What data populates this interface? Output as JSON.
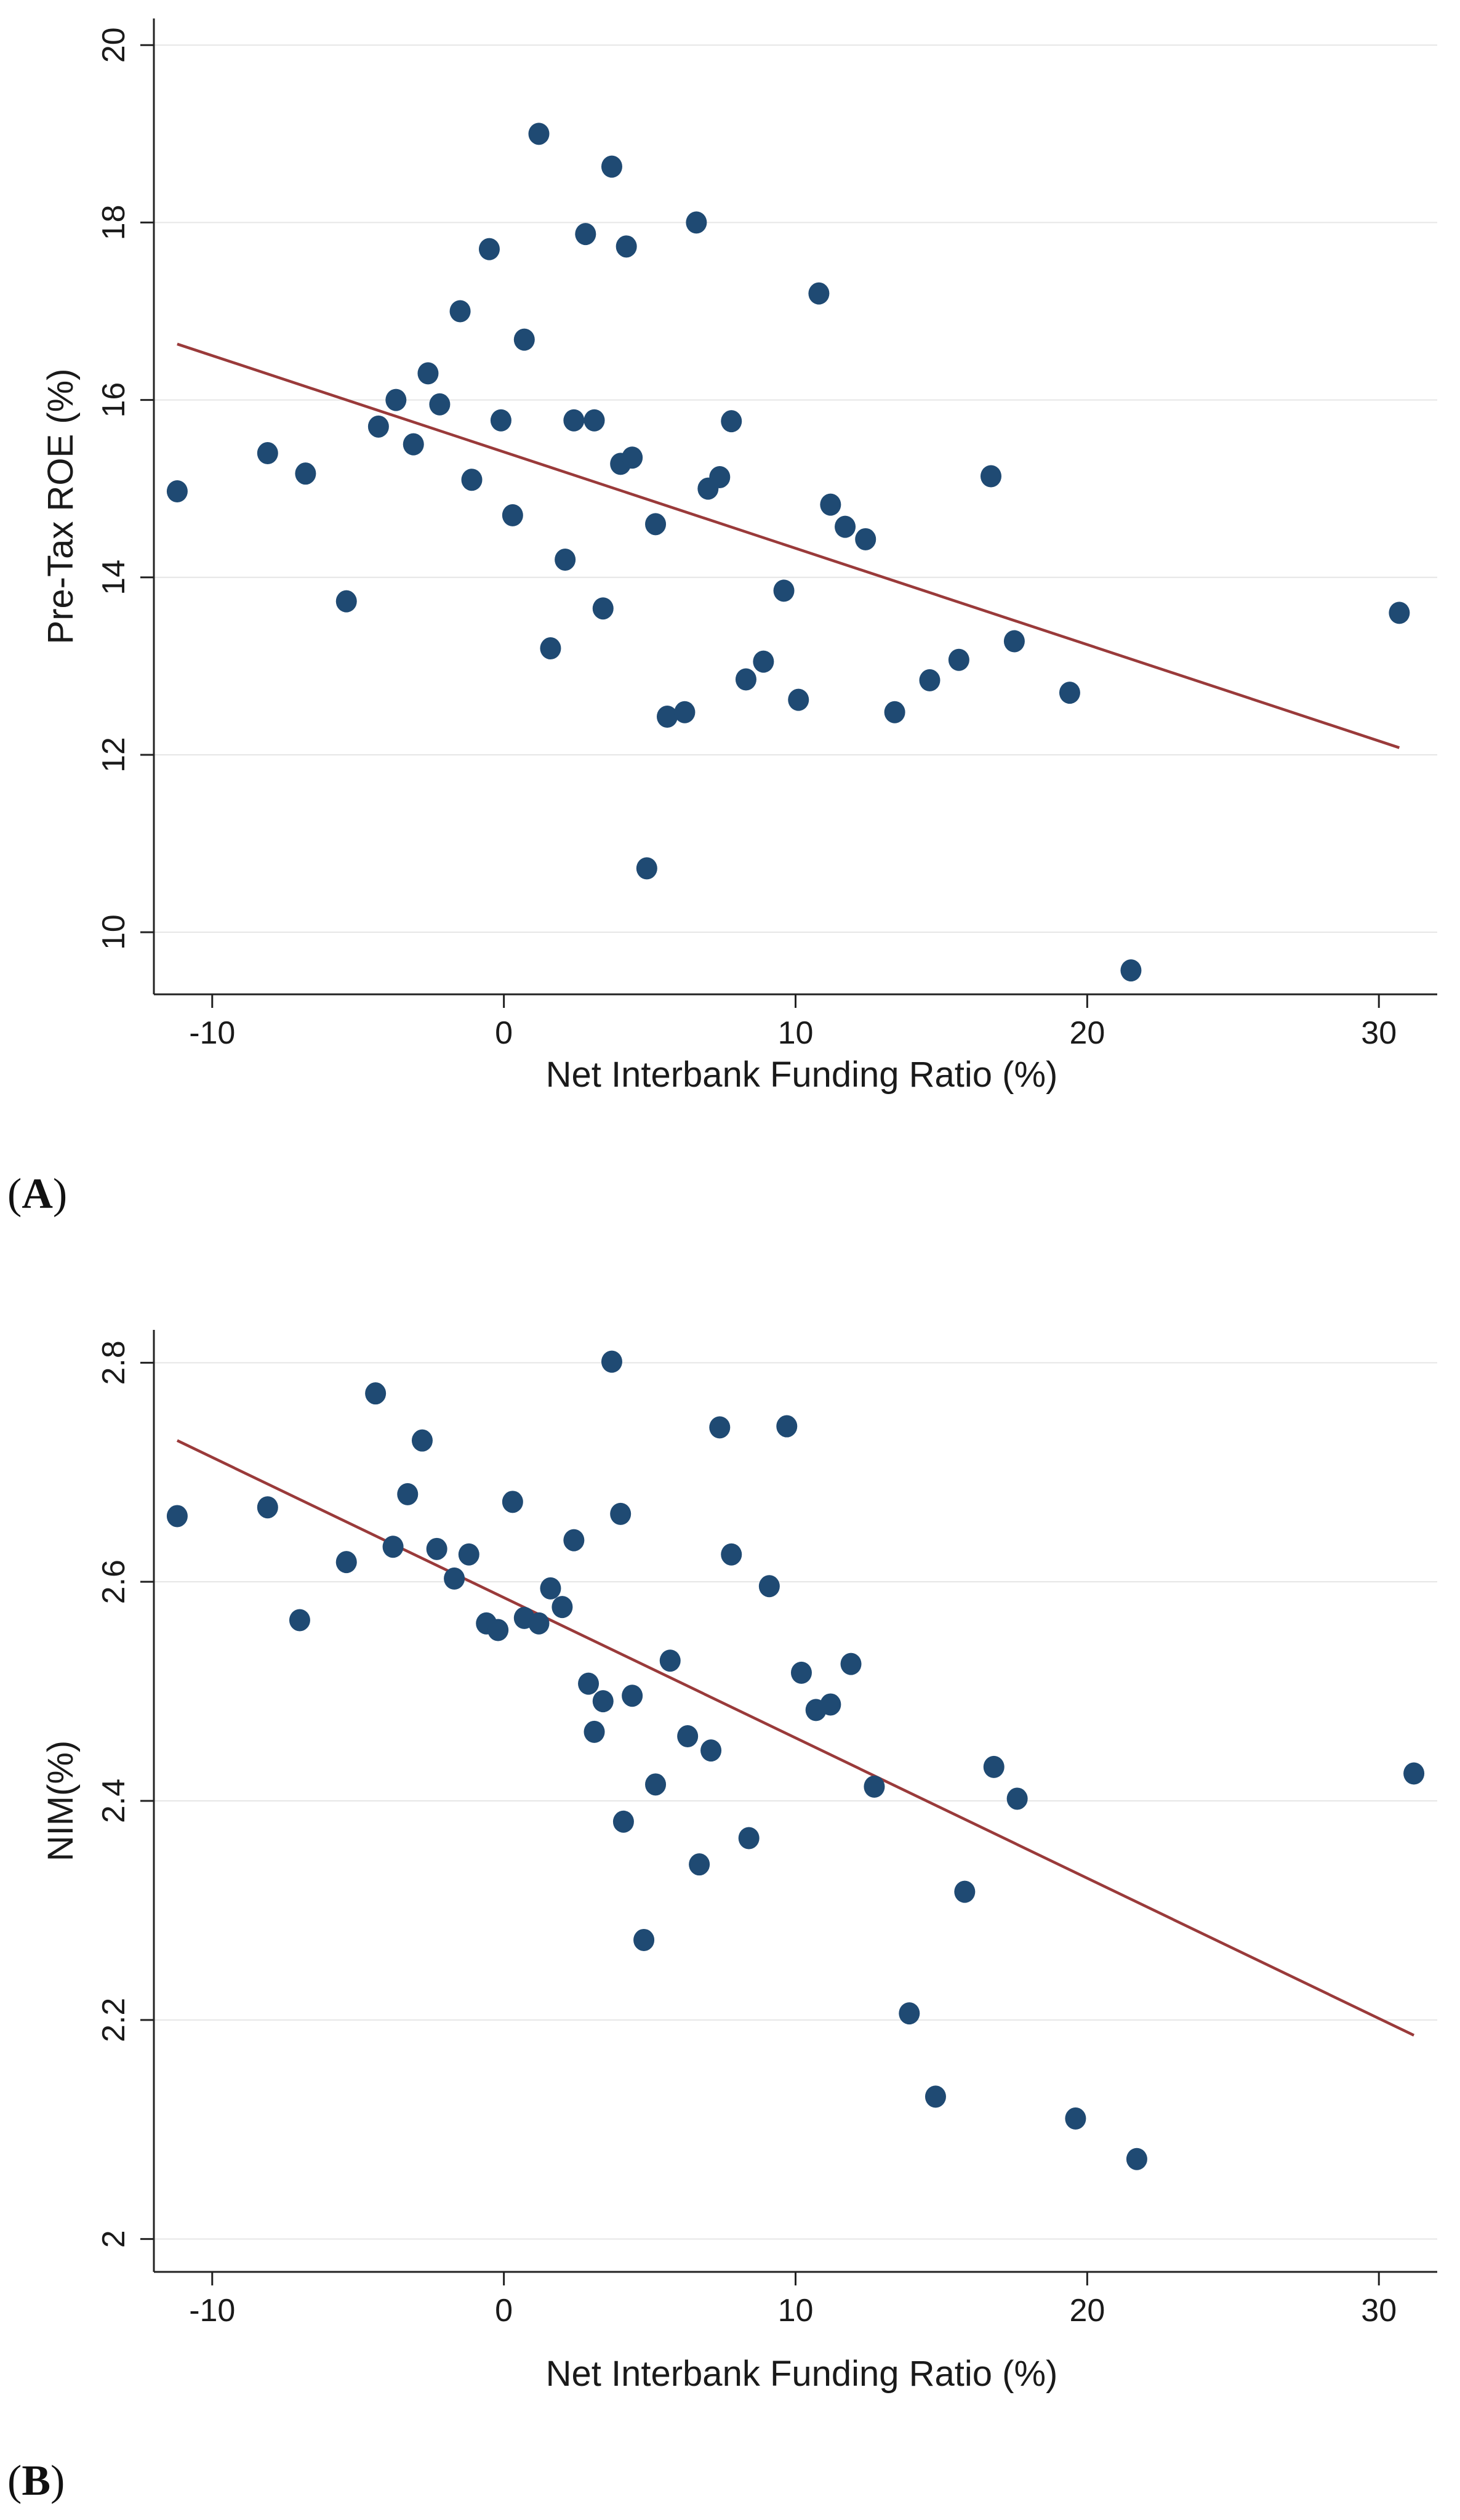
{
  "figure": {
    "panel_labels": [
      "A",
      "B"
    ]
  },
  "colors": {
    "points": "#1f4a73",
    "fit_line": "#9a3a3a",
    "grid": "#e6e6e6",
    "axis": "#222222"
  },
  "chart_data": [
    {
      "type": "scatter",
      "panel": "A",
      "title": "",
      "xlabel": "Net Interbank Funding Ratio (%)",
      "ylabel": "Pre-Tax ROE (%)",
      "xlim": [
        -12,
        32
      ],
      "ylim": [
        9.3,
        20.3
      ],
      "xticks": [
        -10,
        0,
        10,
        20,
        30
      ],
      "yticks": [
        10,
        12,
        14,
        16,
        18,
        20
      ],
      "grid": true,
      "legend": "none",
      "series": [
        {
          "points": [
            [
              -11.2,
              14.97
            ],
            [
              -8.1,
              15.4
            ],
            [
              -6.8,
              15.17
            ],
            [
              -5.4,
              13.73
            ],
            [
              -4.3,
              15.7
            ],
            [
              -3.7,
              16.0
            ],
            [
              -3.1,
              15.5
            ],
            [
              -2.6,
              16.3
            ],
            [
              -2.2,
              15.95
            ],
            [
              -1.5,
              17.0
            ],
            [
              -1.1,
              15.1
            ],
            [
              -0.5,
              17.7
            ],
            [
              -0.1,
              15.77
            ],
            [
              0.3,
              14.7
            ],
            [
              0.7,
              16.68
            ],
            [
              1.2,
              19.0
            ],
            [
              1.6,
              13.2
            ],
            [
              2.1,
              14.2
            ],
            [
              2.4,
              15.77
            ],
            [
              2.8,
              17.87
            ],
            [
              3.1,
              15.77
            ],
            [
              3.4,
              13.65
            ],
            [
              3.7,
              18.63
            ],
            [
              4.0,
              15.28
            ],
            [
              4.2,
              17.73
            ],
            [
              4.4,
              15.35
            ],
            [
              4.9,
              10.72
            ],
            [
              5.2,
              14.6
            ],
            [
              5.6,
              12.43
            ],
            [
              6.2,
              12.48
            ],
            [
              6.6,
              18.0
            ],
            [
              7.0,
              15.0
            ],
            [
              7.4,
              15.13
            ],
            [
              7.8,
              15.76
            ],
            [
              8.3,
              12.85
            ],
            [
              8.9,
              13.05
            ],
            [
              9.6,
              13.85
            ],
            [
              10.1,
              12.62
            ],
            [
              10.8,
              17.2
            ],
            [
              11.2,
              14.82
            ],
            [
              11.7,
              14.57
            ],
            [
              12.4,
              14.43
            ],
            [
              13.4,
              12.48
            ],
            [
              14.6,
              12.84
            ],
            [
              15.6,
              13.07
            ],
            [
              16.7,
              15.14
            ],
            [
              17.5,
              13.28
            ],
            [
              19.4,
              12.7
            ],
            [
              21.5,
              9.57
            ],
            [
              30.7,
              13.6
            ]
          ]
        }
      ],
      "fit_line": {
        "x": [
          -11.2,
          30.7
        ],
        "y": [
          16.63,
          12.08
        ]
      }
    },
    {
      "type": "scatter",
      "panel": "B",
      "title": "",
      "xlabel": "Net Interbank Funding Ratio (%)",
      "ylabel": "NIM(%)",
      "xlim": [
        -12,
        32
      ],
      "ylim": [
        1.97,
        2.83
      ],
      "xticks": [
        -10,
        0,
        10,
        20,
        30
      ],
      "yticks": [
        2,
        2.2,
        2.4,
        2.6,
        2.8
      ],
      "grid": true,
      "legend": "none",
      "series": [
        {
          "points": [
            [
              -11.2,
              2.66
            ],
            [
              -8.1,
              2.668
            ],
            [
              -7.0,
              2.565
            ],
            [
              -5.4,
              2.618
            ],
            [
              -4.4,
              2.772
            ],
            [
              -3.8,
              2.632
            ],
            [
              -3.3,
              2.68
            ],
            [
              -2.8,
              2.729
            ],
            [
              -2.3,
              2.63
            ],
            [
              -1.7,
              2.603
            ],
            [
              -1.2,
              2.625
            ],
            [
              -0.6,
              2.562
            ],
            [
              -0.2,
              2.556
            ],
            [
              0.3,
              2.673
            ],
            [
              0.7,
              2.567
            ],
            [
              1.2,
              2.562
            ],
            [
              1.6,
              2.594
            ],
            [
              2.0,
              2.577
            ],
            [
              2.4,
              2.638
            ],
            [
              2.9,
              2.507
            ],
            [
              3.1,
              2.463
            ],
            [
              3.4,
              2.491
            ],
            [
              3.7,
              2.801
            ],
            [
              4.0,
              2.662
            ],
            [
              4.1,
              2.381
            ],
            [
              4.4,
              2.496
            ],
            [
              4.8,
              2.273
            ],
            [
              5.2,
              2.415
            ],
            [
              5.7,
              2.528
            ],
            [
              6.3,
              2.459
            ],
            [
              6.7,
              2.342
            ],
            [
              7.1,
              2.446
            ],
            [
              7.4,
              2.741
            ],
            [
              7.8,
              2.625
            ],
            [
              8.4,
              2.366
            ],
            [
              9.1,
              2.596
            ],
            [
              9.7,
              2.742
            ],
            [
              10.2,
              2.517
            ],
            [
              10.7,
              2.483
            ],
            [
              11.2,
              2.488
            ],
            [
              11.9,
              2.525
            ],
            [
              12.7,
              2.413
            ],
            [
              13.9,
              2.206
            ],
            [
              14.8,
              2.13
            ],
            [
              15.8,
              2.317
            ],
            [
              16.8,
              2.431
            ],
            [
              17.6,
              2.402
            ],
            [
              19.6,
              2.11
            ],
            [
              21.7,
              2.073
            ],
            [
              31.2,
              2.425
            ]
          ]
        }
      ],
      "fit_line": {
        "x": [
          -11.2,
          31.2
        ],
        "y": [
          2.729,
          2.186
        ]
      }
    }
  ]
}
